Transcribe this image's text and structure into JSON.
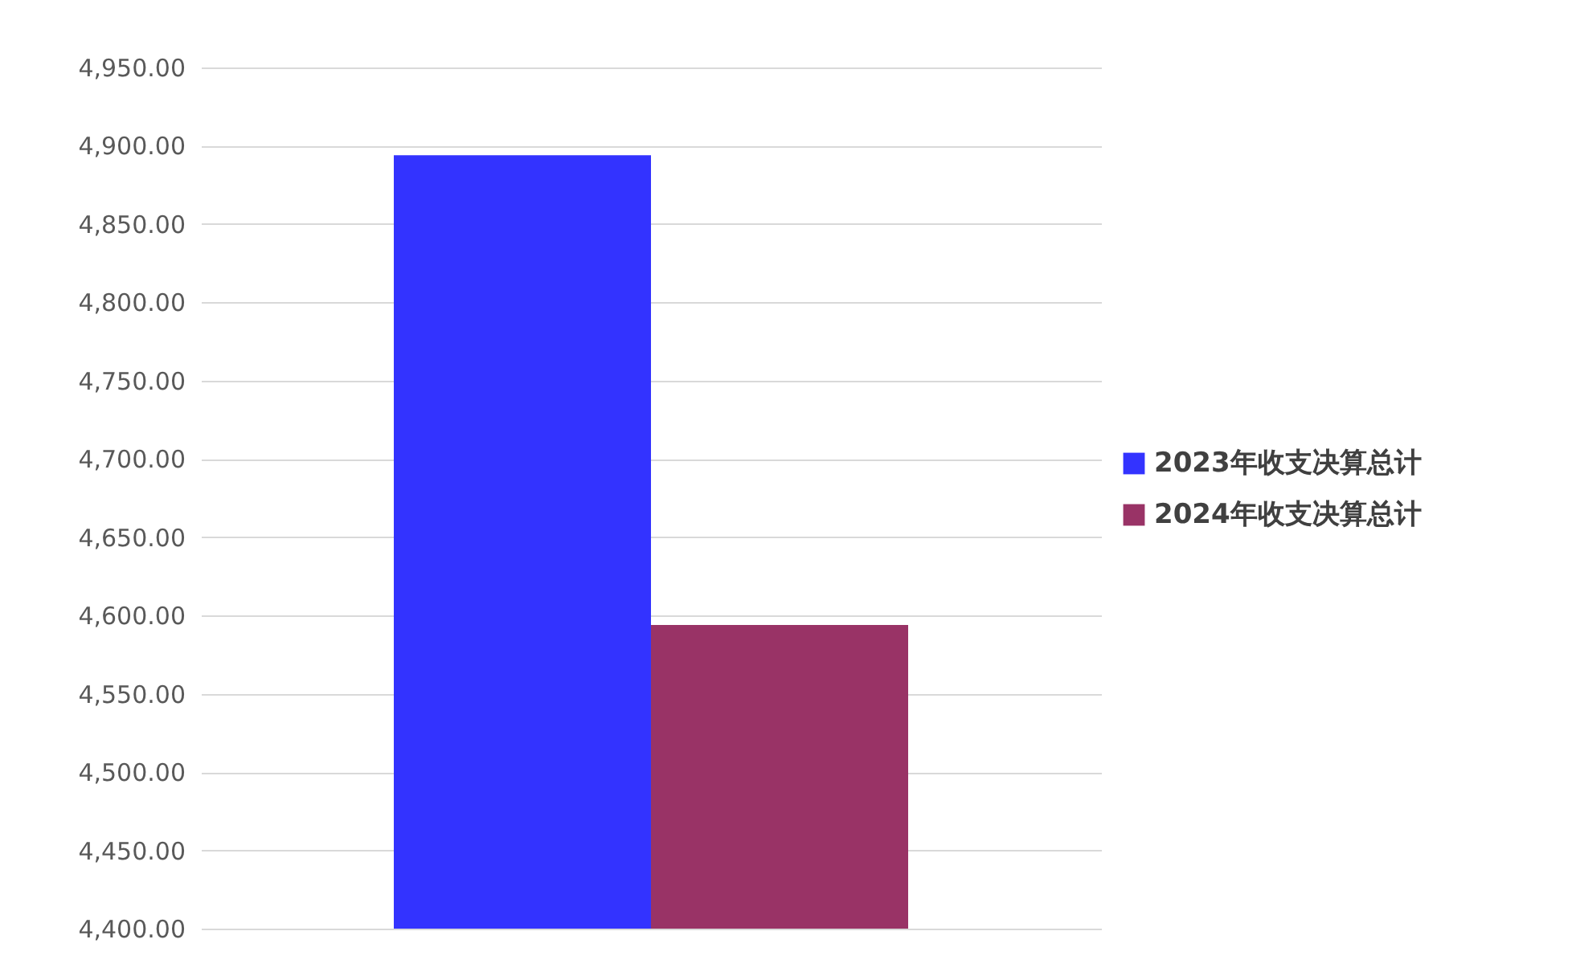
{
  "chart_data": {
    "type": "bar",
    "categories": [
      null
    ],
    "series": [
      {
        "name": "2023年收支决算总计",
        "color": "#3333ff",
        "values": [
          4894
        ]
      },
      {
        "name": "2024年收支决算总计",
        "color": "#993366",
        "values": [
          4594
        ]
      }
    ],
    "ylim": [
      4400,
      4950
    ],
    "yticks": [
      {
        "value": 4400,
        "label": "4,400.00"
      },
      {
        "value": 4450,
        "label": "4,450.00"
      },
      {
        "value": 4500,
        "label": "4,500.00"
      },
      {
        "value": 4550,
        "label": "4,550.00"
      },
      {
        "value": 4600,
        "label": "4,600.00"
      },
      {
        "value": 4650,
        "label": "4,650.00"
      },
      {
        "value": 4700,
        "label": "4,700.00"
      },
      {
        "value": 4750,
        "label": "4,750.00"
      },
      {
        "value": 4800,
        "label": "4,800.00"
      },
      {
        "value": 4850,
        "label": "4,850.00"
      },
      {
        "value": 4900,
        "label": "4,900.00"
      },
      {
        "value": 4950,
        "label": "4,950.00"
      }
    ],
    "grid": "y",
    "legend": "right"
  }
}
